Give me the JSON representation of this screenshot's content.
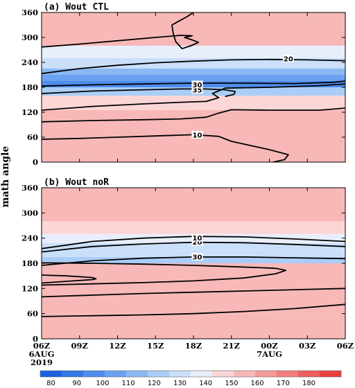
{
  "chart_data": {
    "type": "heatmap",
    "ylabel": "math angle",
    "x_ticks": [
      "06Z",
      "09Z",
      "12Z",
      "15Z",
      "18Z",
      "21Z",
      "00Z",
      "03Z",
      "06Z"
    ],
    "x_tick_hours": [
      0,
      3,
      6,
      9,
      12,
      15,
      18,
      21,
      24
    ],
    "x_sublabels": [
      {
        "hour": 0,
        "lines": [
          "6AUG",
          "2019"
        ]
      },
      {
        "hour": 18,
        "lines": [
          "7AUG"
        ]
      }
    ],
    "y_ticks": [
      0,
      60,
      120,
      180,
      240,
      300,
      360
    ],
    "ylim": [
      0,
      360
    ],
    "colorbar": {
      "ticks": [
        80,
        90,
        100,
        110,
        120,
        130,
        140,
        150,
        160,
        170,
        180
      ],
      "colors": [
        "#1a60e0",
        "#3477e6",
        "#4f8ceb",
        "#6ba2ef",
        "#8ab8f3",
        "#aacdf7",
        "#cadff9",
        "#e8eefb",
        "#fbd6d6",
        "#f8b8b8",
        "#f59a9a",
        "#f27c7c",
        "#ef5e5e",
        "#ea3f3f"
      ]
    },
    "panels": [
      {
        "title": "(a) Wout CTL",
        "bands": [
          {
            "y0": 0,
            "y1": 60,
            "value": 166
          },
          {
            "y0": 60,
            "y1": 125,
            "value": 160
          },
          {
            "y0": 125,
            "y1": 160,
            "value": 150
          },
          {
            "y0": 160,
            "y1": 180,
            "value": 120
          },
          {
            "y0": 180,
            "y1": 195,
            "value": 92
          },
          {
            "y0": 195,
            "y1": 210,
            "value": 100
          },
          {
            "y0": 210,
            "y1": 225,
            "value": 115
          },
          {
            "y0": 225,
            "y1": 250,
            "value": 130
          },
          {
            "y0": 250,
            "y1": 280,
            "value": 145
          },
          {
            "y0": 280,
            "y1": 360,
            "value": 160
          }
        ],
        "contours": [
          {
            "level": "10",
            "label_at": [
              12.3,
              65
            ],
            "points": [
              [
                0,
                55
              ],
              [
                3,
                57
              ],
              [
                6,
                60
              ],
              [
                9,
                63
              ],
              [
                12,
                66
              ],
              [
                14,
                62
              ],
              [
                15,
                50
              ],
              [
                16.5,
                40
              ],
              [
                18,
                30
              ],
              [
                19.5,
                18
              ],
              [
                19.2,
                6
              ],
              [
                18.3,
                0
              ]
            ]
          },
          {
            "level": "",
            "points": [
              [
                0,
                97
              ],
              [
                4,
                100
              ],
              [
                8,
                102
              ],
              [
                11,
                104
              ],
              [
                13,
                108
              ],
              [
                14,
                118
              ],
              [
                15,
                126
              ],
              [
                18,
                125
              ],
              [
                22,
                125
              ],
              [
                24,
                130
              ]
            ]
          },
          {
            "level": "",
            "points": [
              [
                0,
                125
              ],
              [
                4,
                134
              ],
              [
                8,
                140
              ],
              [
                11,
                144
              ],
              [
                13,
                146
              ],
              [
                14,
                155
              ],
              [
                13.5,
                165
              ],
              [
                14.5,
                178
              ],
              [
                18,
                180
              ],
              [
                22,
                184
              ],
              [
                24,
                188
              ]
            ]
          },
          {
            "level": "35",
            "label_at": [
              12.3,
              173
            ],
            "points": [
              [
                0,
                165
              ],
              [
                4,
                171
              ],
              [
                8,
                174
              ],
              [
                11,
                176
              ],
              [
                13,
                176
              ],
              [
                14.5,
                174
              ],
              [
                15.3,
                170
              ],
              [
                15.2,
                163
              ],
              [
                14.5,
                158
              ]
            ]
          },
          {
            "level": "30",
            "label_at": [
              12.3,
              186
            ],
            "points": [
              [
                0,
                183
              ],
              [
                4,
                186
              ],
              [
                8,
                188
              ],
              [
                12,
                190
              ],
              [
                16,
                190
              ],
              [
                20,
                189
              ],
              [
                23,
                192
              ],
              [
                24,
                195
              ]
            ]
          },
          {
            "level": "20",
            "label_at": [
              19.5,
              248
            ],
            "points": [
              [
                0,
                213
              ],
              [
                3,
                225
              ],
              [
                6,
                233
              ],
              [
                9,
                239
              ],
              [
                12,
                243
              ],
              [
                15,
                246
              ],
              [
                18,
                247
              ],
              [
                21,
                246
              ],
              [
                24,
                244
              ]
            ]
          },
          {
            "level": "",
            "points": [
              [
                0,
                277
              ],
              [
                3,
                284
              ],
              [
                6,
                292
              ],
              [
                9,
                300
              ],
              [
                11,
                305
              ],
              [
                11.9,
                304
              ],
              [
                11.3,
                300
              ],
              [
                11.9,
                294
              ],
              [
                12.4,
                288
              ],
              [
                11.8,
                280
              ],
              [
                11.1,
                273
              ],
              [
                10.6,
                290
              ],
              [
                10.4,
                310
              ],
              [
                10.3,
                330
              ],
              [
                11.5,
                350
              ],
              [
                12.0,
                360
              ]
            ]
          }
        ]
      },
      {
        "title": "(b) Wout noR",
        "bands": [
          {
            "y0": 0,
            "y1": 60,
            "value": 168
          },
          {
            "y0": 60,
            "y1": 180,
            "value": 164
          },
          {
            "y0": 180,
            "y1": 195,
            "value": 128
          },
          {
            "y0": 195,
            "y1": 212,
            "value": 132
          },
          {
            "y0": 212,
            "y1": 228,
            "value": 138
          },
          {
            "y0": 228,
            "y1": 250,
            "value": 145
          },
          {
            "y0": 250,
            "y1": 280,
            "value": 152
          },
          {
            "y0": 280,
            "y1": 360,
            "value": 160
          }
        ],
        "contours": [
          {
            "level": "",
            "points": [
              [
                0,
                53
              ],
              [
                4,
                55
              ],
              [
                8,
                57
              ],
              [
                12,
                60
              ],
              [
                16,
                65
              ],
              [
                20,
                72
              ],
              [
                24,
                82
              ]
            ]
          },
          {
            "level": "",
            "points": [
              [
                0,
                100
              ],
              [
                4,
                104
              ],
              [
                8,
                108
              ],
              [
                12,
                111
              ],
              [
                16,
                114
              ],
              [
                20,
                117
              ],
              [
                24,
                120
              ]
            ]
          },
          {
            "level": "",
            "points": [
              [
                0,
                128
              ],
              [
                4,
                131
              ],
              [
                8,
                134
              ],
              [
                12,
                138
              ],
              [
                16,
                145
              ],
              [
                18.5,
                155
              ],
              [
                19.3,
                163
              ],
              [
                18.5,
                168
              ],
              [
                17,
                170
              ],
              [
                15,
                172
              ],
              [
                12,
                175
              ],
              [
                8,
                178
              ],
              [
                4,
                180
              ],
              [
                0,
                181
              ]
            ]
          },
          {
            "level": "",
            "points": [
              [
                0,
                133
              ],
              [
                2,
                137
              ],
              [
                4,
                141
              ],
              [
                4.3,
                143
              ],
              [
                4,
                146
              ],
              [
                2,
                150
              ],
              [
                0,
                152
              ]
            ]
          },
          {
            "level": "30",
            "label_at": [
              12.3,
              195
            ],
            "points": [
              [
                0,
                175
              ],
              [
                4,
                186
              ],
              [
                8,
                192
              ],
              [
                12,
                195
              ],
              [
                16,
                195
              ],
              [
                20,
                193
              ],
              [
                24,
                191
              ]
            ]
          },
          {
            "level": "20",
            "label_at": [
              12.3,
              230
            ],
            "points": [
              [
                0,
                207
              ],
              [
                4,
                220
              ],
              [
                8,
                226
              ],
              [
                12,
                230
              ],
              [
                16,
                229
              ],
              [
                20,
                225
              ],
              [
                24,
                220
              ]
            ]
          },
          {
            "level": "10",
            "label_at": [
              12.3,
              240
            ],
            "points": [
              [
                0,
                215
              ],
              [
                4,
                232
              ],
              [
                8,
                240
              ],
              [
                12,
                244
              ],
              [
                16,
                243
              ],
              [
                20,
                238
              ],
              [
                24,
                232
              ]
            ]
          }
        ]
      }
    ]
  }
}
